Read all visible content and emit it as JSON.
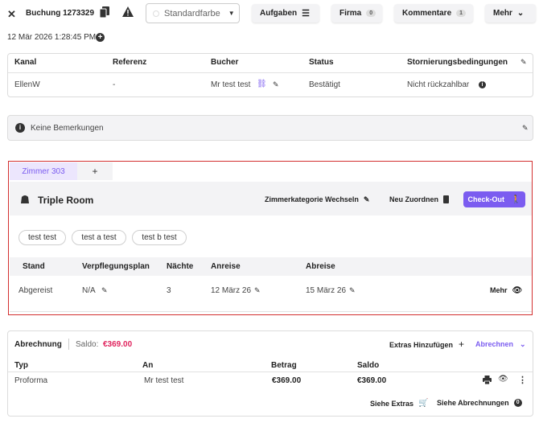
{
  "header": {
    "title": "Buchung 1273329",
    "color_select": "Standardfarbe",
    "tasks_label": "Aufgaben",
    "company_label": "Firma",
    "company_count": "0",
    "comments_label": "Kommentare",
    "comments_count": "1",
    "more_label": "Mehr",
    "timestamp": "12 Mär 2026 1:28:45 PM"
  },
  "booking_table": {
    "headers": [
      "Kanal",
      "Referenz",
      "Bucher",
      "Status",
      "Stornierungsbedingungen"
    ],
    "row": [
      "EllenW",
      "-",
      "Mr test test",
      "Bestätigt",
      "Nicht rückzahlbar"
    ]
  },
  "remarks": {
    "text": "Keine Bemerkungen"
  },
  "room": {
    "tab_label": "Zimmer 303",
    "add_tab": "+",
    "room_type": "Triple Room",
    "change_category": "Zimmerkategorie Wechseln",
    "reassign": "Neu Zuordnen",
    "checkout": "Check-Out",
    "guests": [
      "test test",
      "test a test",
      "test b test"
    ],
    "headers": [
      "Stand",
      "Verpflegungsplan",
      "Nächte",
      "Anreise",
      "Abreise"
    ],
    "row": [
      "Abgereist",
      "N/A",
      "3",
      "12 März 26",
      "15 März 26"
    ],
    "more": "Mehr"
  },
  "billing": {
    "title": "Abrechnung",
    "saldo_label": "Saldo:",
    "saldo_value": "€369.00",
    "add_extras": "Extras Hinzufügen",
    "settle": "Abrechnen",
    "headers": [
      "Typ",
      "An",
      "Betrag",
      "Saldo"
    ],
    "row": [
      "Proforma",
      "Mr test test",
      "€369.00",
      "€369.00"
    ],
    "see_extras": "Siehe Extras",
    "see_invoices": "Siehe Abrechnungen",
    "invoices_count": "0"
  },
  "colors": {
    "accent": "#7b5cf0",
    "danger": "#e0245e",
    "room_border": "#d32f2f"
  }
}
